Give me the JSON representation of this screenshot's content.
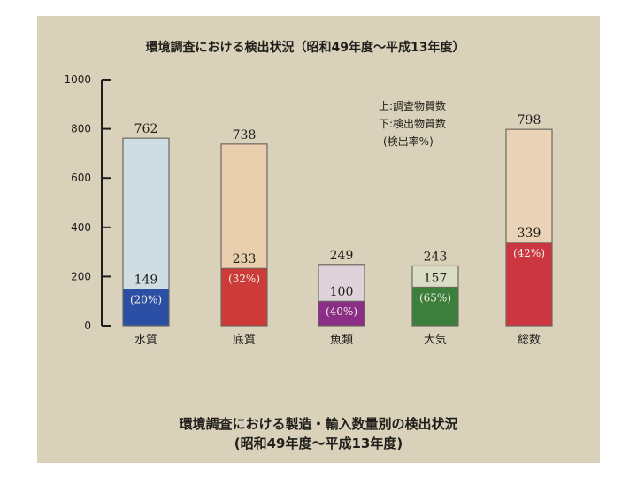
{
  "chart_data": {
    "type": "bar",
    "title": "環境調査における検出状況（昭和49年度〜平成13年度）",
    "categories": [
      "水質",
      "底質",
      "魚類",
      "大気",
      "総数"
    ],
    "series": [
      {
        "name": "調査物質数",
        "values": [
          762,
          738,
          249,
          243,
          798
        ]
      },
      {
        "name": "検出物質数",
        "values": [
          149,
          233,
          100,
          157,
          339
        ]
      }
    ],
    "detection_rates": [
      "(20%)",
      "(32%)",
      "(40%)",
      "(65%)",
      "(42%)"
    ],
    "ylim": [
      0,
      1000
    ],
    "yticks": [
      0,
      200,
      400,
      600,
      800,
      1000
    ],
    "legend": [
      "上:調査物質数",
      "下:検出物質数",
      "(検出率%)"
    ],
    "colors": {
      "upper": [
        "#cfdde3",
        "#e9cfad",
        "#dfd2db",
        "#d9dec5",
        "#ead2b6"
      ],
      "lower": [
        "#2b4fa5",
        "#cc3b38",
        "#8b2f86",
        "#3c7f3c",
        "#cc3640"
      ]
    }
  },
  "caption": {
    "line1": "環境調査における製造・輸入数量別の検出状況",
    "line2": "(昭和49年度〜平成13年度)"
  }
}
